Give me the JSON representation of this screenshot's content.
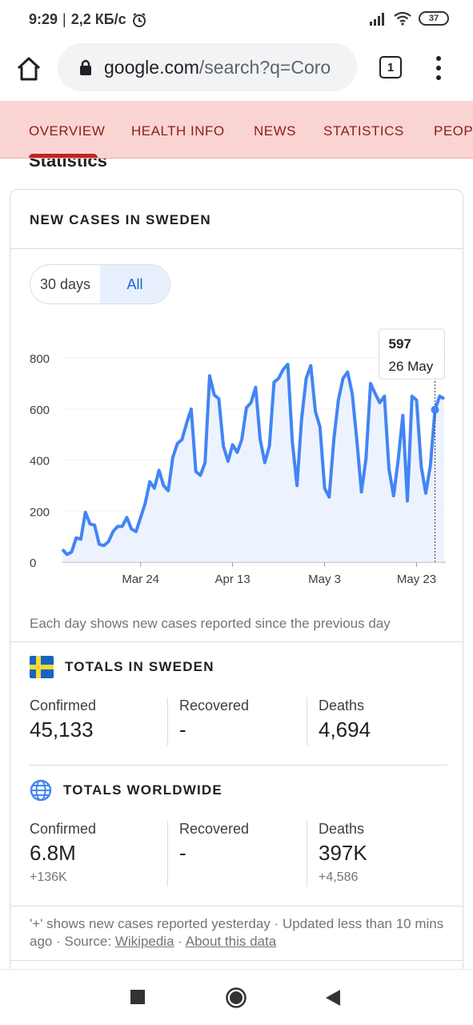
{
  "status_bar": {
    "time": "9:29",
    "separator": "|",
    "speed": "2,2 КБ/с",
    "battery": "37"
  },
  "browser": {
    "url_host": "google.com",
    "url_rest": "/search?q=Coro",
    "tab_count": "1"
  },
  "tabs": [
    {
      "label": "OVERVIEW"
    },
    {
      "label": "HEALTH INFO"
    },
    {
      "label": "NEWS"
    },
    {
      "label": "STATISTICS"
    },
    {
      "label": "PEOP"
    }
  ],
  "section_heading": "Statistics",
  "card": {
    "title": "NEW CASES IN SWEDEN",
    "range_options": [
      "30 days",
      "All"
    ],
    "range_selected": "All",
    "chart_note": "Each day shows new cases reported since the previous day",
    "tooltip": {
      "value": "597",
      "date": "26 May"
    }
  },
  "chart_data": {
    "type": "area",
    "ylim": [
      0,
      800
    ],
    "yticks": [
      "0",
      "200",
      "400",
      "600",
      "800"
    ],
    "xticks": [
      {
        "label": "Mar 24",
        "index": 17
      },
      {
        "label": "Apr 13",
        "index": 37
      },
      {
        "label": "May 3",
        "index": 57
      },
      {
        "label": "May 23",
        "index": 77
      }
    ],
    "values": [
      50,
      30,
      40,
      95,
      90,
      195,
      150,
      145,
      70,
      65,
      80,
      120,
      140,
      140,
      175,
      130,
      120,
      175,
      230,
      315,
      290,
      360,
      300,
      280,
      410,
      465,
      480,
      545,
      600,
      355,
      340,
      390,
      730,
      655,
      640,
      455,
      395,
      460,
      430,
      480,
      605,
      625,
      685,
      480,
      390,
      455,
      705,
      720,
      755,
      775,
      470,
      300,
      560,
      720,
      770,
      590,
      530,
      290,
      255,
      480,
      635,
      720,
      745,
      660,
      480,
      275,
      405,
      700,
      660,
      625,
      650,
      365,
      260,
      400,
      575,
      240,
      650,
      635,
      375,
      270,
      380,
      597,
      650,
      640
    ],
    "highlight_index": 81,
    "line_color": "#4285f4",
    "fill_color": "#e8f0fe"
  },
  "sweden": {
    "title": "TOTALS IN SWEDEN",
    "confirmed_label": "Confirmed",
    "confirmed": "45,133",
    "recovered_label": "Recovered",
    "recovered": "-",
    "deaths_label": "Deaths",
    "deaths": "4,694"
  },
  "world": {
    "title": "TOTALS WORLDWIDE",
    "confirmed_label": "Confirmed",
    "confirmed": "6.8M",
    "confirmed_delta": "+136K",
    "recovered_label": "Recovered",
    "recovered": "-",
    "deaths_label": "Deaths",
    "deaths": "397K",
    "deaths_delta": "+4,586"
  },
  "footnote": {
    "text": "'+' shows new cases reported yesterday · Updated less than 10 mins ago",
    "sep": "·",
    "source_label": "Source:",
    "source_link": "Wikipedia",
    "about_link": "About this data"
  },
  "icons": {
    "home": "home-icon",
    "lock": "lock-icon",
    "tabs": "tab-switcher-icon",
    "menu": "overflow-menu-icon",
    "sweden_flag": "sweden-flag-icon",
    "globe": "globe-icon",
    "nav_recents": "recents-square-icon",
    "nav_home": "home-circle-icon",
    "nav_back": "back-triangle-icon"
  }
}
